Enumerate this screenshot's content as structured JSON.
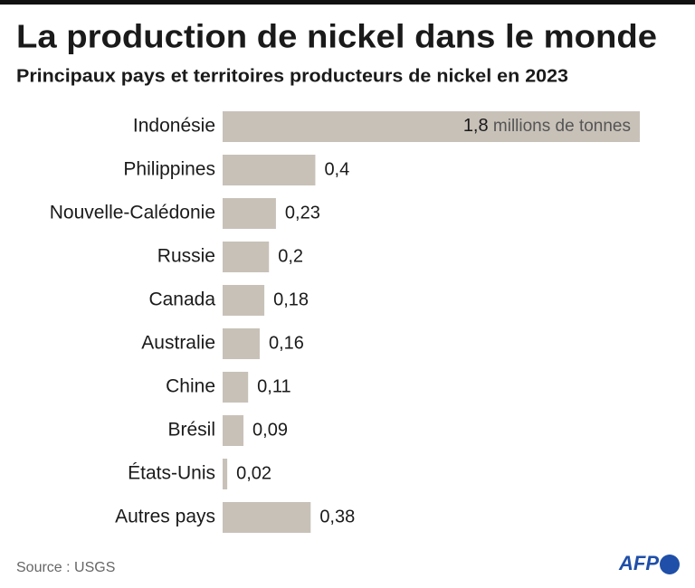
{
  "chart_data": {
    "type": "bar",
    "orientation": "horizontal",
    "title": "La production de nickel dans le monde",
    "subtitle": "Principaux pays et territoires producteurs de nickel en 2023",
    "categories": [
      "Indonésie",
      "Philippines",
      "Nouvelle-Calédonie",
      "Russie",
      "Canada",
      "Australie",
      "Chine",
      "Brésil",
      "États-Unis",
      "Autres pays"
    ],
    "values": [
      1.8,
      0.4,
      0.23,
      0.2,
      0.18,
      0.16,
      0.11,
      0.09,
      0.02,
      0.38
    ],
    "value_labels": [
      "1,8",
      "0,4",
      "0,23",
      "0,2",
      "0,18",
      "0,16",
      "0,11",
      "0,09",
      "0,02",
      "0,38"
    ],
    "unit_label": "millions de tonnes",
    "color": "#c8c1b8",
    "source": "Source : USGS",
    "logo": "AFP"
  }
}
